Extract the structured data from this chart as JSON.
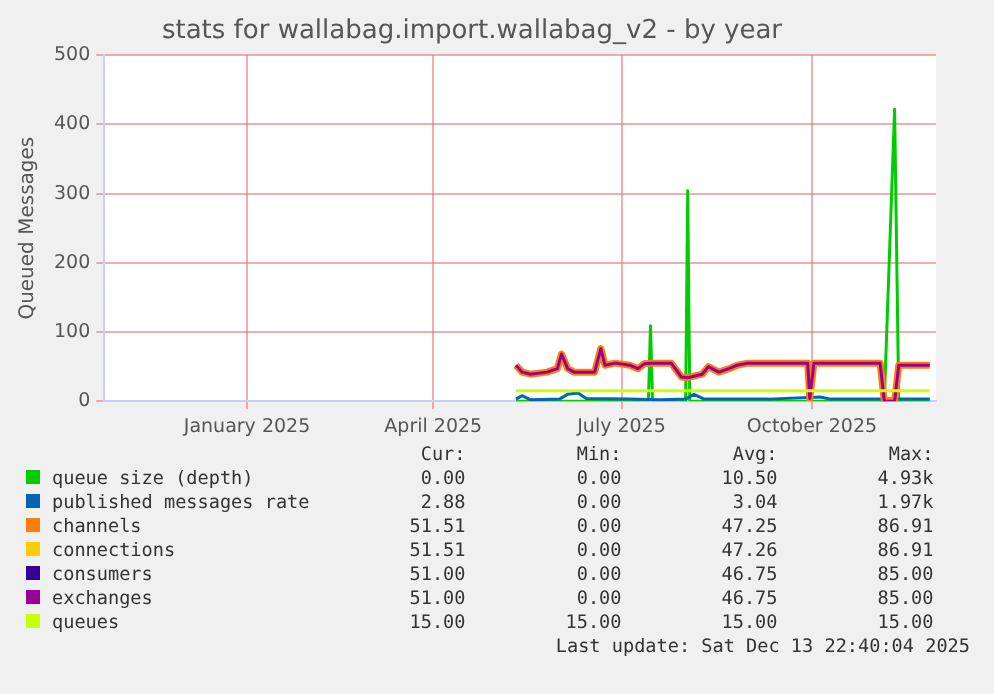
{
  "chart_data": {
    "type": "line",
    "title": "stats for wallabag.import.wallabag_v2 - by year",
    "ylabel": "Queued Messages",
    "xlim": [
      "2024-10-24",
      "2025-11-30"
    ],
    "ylim": [
      0,
      500
    ],
    "yticks": [
      0,
      100,
      200,
      300,
      400,
      500
    ],
    "xticks": [
      {
        "value": "2025-01-01",
        "label": "January 2025"
      },
      {
        "value": "2025-04-01",
        "label": "April 2025"
      },
      {
        "value": "2025-07-01",
        "label": "July 2025"
      },
      {
        "value": "2025-10-01",
        "label": "October 2025"
      }
    ],
    "grid": true,
    "legend": "bottom",
    "x": [
      "2025-05-11",
      "2025-05-14",
      "2025-05-18",
      "2025-05-26",
      "2025-05-31",
      "2025-06-02",
      "2025-06-05",
      "2025-06-08",
      "2025-06-18",
      "2025-06-21",
      "2025-06-23",
      "2025-06-28",
      "2025-07-05",
      "2025-07-09",
      "2025-07-12",
      "2025-07-15",
      "2025-07-25",
      "2025-07-30",
      "2025-08-02",
      "2025-08-09",
      "2025-08-12",
      "2025-08-17",
      "2025-08-22",
      "2025-08-26",
      "2025-08-31",
      "2025-09-29",
      "2025-09-30",
      "2025-10-02",
      "2025-11-03",
      "2025-11-05",
      "2025-11-10",
      "2025-11-12",
      "2025-11-27"
    ],
    "series": [
      {
        "name": "queue size (depth)",
        "color": "#00cc00",
        "x": [
          "2025-05-11",
          "2025-07-14",
          "2025-07-15",
          "2025-07-16",
          "2025-08-01",
          "2025-08-02",
          "2025-08-03",
          "2025-11-05",
          "2025-11-10",
          "2025-11-12",
          "2025-11-27"
        ],
        "values": [
          0,
          0,
          109,
          0,
          0,
          304,
          0,
          0,
          422,
          0,
          0
        ]
      },
      {
        "name": "published messages rate",
        "color": "#0066b3",
        "x": [
          "2025-05-11",
          "2025-05-14",
          "2025-05-18",
          "2025-06-01",
          "2025-06-05",
          "2025-06-10",
          "2025-06-14",
          "2025-07-05",
          "2025-07-20",
          "2025-08-01",
          "2025-08-05",
          "2025-08-10",
          "2025-09-10",
          "2025-10-05",
          "2025-10-10",
          "2025-11-27"
        ],
        "values": [
          3,
          8,
          2,
          3,
          10,
          12,
          4,
          3,
          2,
          3,
          10,
          3,
          3,
          6,
          3,
          3
        ]
      },
      {
        "name": "channels",
        "color": "#ff8000",
        "values": [
          52,
          42,
          39,
          42,
          47,
          68,
          47,
          42,
          42,
          76,
          52,
          55,
          52,
          47,
          54,
          55,
          55,
          35,
          34,
          39,
          50,
          42,
          47,
          52,
          55,
          55,
          4,
          55,
          55,
          0,
          0,
          52,
          52
        ]
      },
      {
        "name": "connections",
        "color": "#ffcc00",
        "values": [
          null,
          null,
          null,
          null,
          null,
          null,
          null,
          null,
          null,
          null,
          null,
          null,
          null,
          null,
          null,
          null,
          null,
          null,
          null,
          null,
          null,
          null,
          null,
          null,
          null,
          null,
          null,
          null,
          null,
          null,
          null,
          null,
          null
        ]
      },
      {
        "name": "consumers",
        "color": "#330099",
        "values": [
          null,
          null,
          null,
          null,
          null,
          null,
          null,
          null,
          null,
          null,
          null,
          null,
          null,
          null,
          null,
          null,
          null,
          null,
          null,
          null,
          null,
          null,
          null,
          null,
          null,
          null,
          null,
          null,
          null,
          null,
          null,
          null,
          null
        ]
      },
      {
        "name": "exchanges",
        "color": "#990099",
        "values": [
          52,
          42,
          39,
          42,
          47,
          68,
          47,
          42,
          42,
          76,
          52,
          55,
          52,
          47,
          54,
          55,
          55,
          35,
          34,
          39,
          50,
          42,
          47,
          52,
          55,
          55,
          4,
          55,
          55,
          0,
          0,
          52,
          52
        ]
      },
      {
        "name": "queues",
        "color": "#ccff00",
        "x": [
          "2025-05-11",
          "2025-11-27"
        ],
        "values": [
          15,
          15
        ]
      }
    ],
    "annotations": [
      "Cur:",
      "Min:",
      "Avg:",
      "Max:",
      "0.00",
      "0.00",
      "10.50",
      "4.93k",
      "2.88",
      "0.00",
      "3.04",
      "1.97k",
      "51.51",
      "0.00",
      "47.25",
      "86.91",
      "51.51",
      "0.00",
      "47.26",
      "86.91",
      "51.00",
      "0.00",
      "46.75",
      "85.00",
      "51.00",
      "0.00",
      "46.75",
      "85.00",
      "15.00",
      "15.00",
      "15.00",
      "15.00",
      "Last update: Sat Dec 13 22:40:04 2025"
    ]
  }
}
